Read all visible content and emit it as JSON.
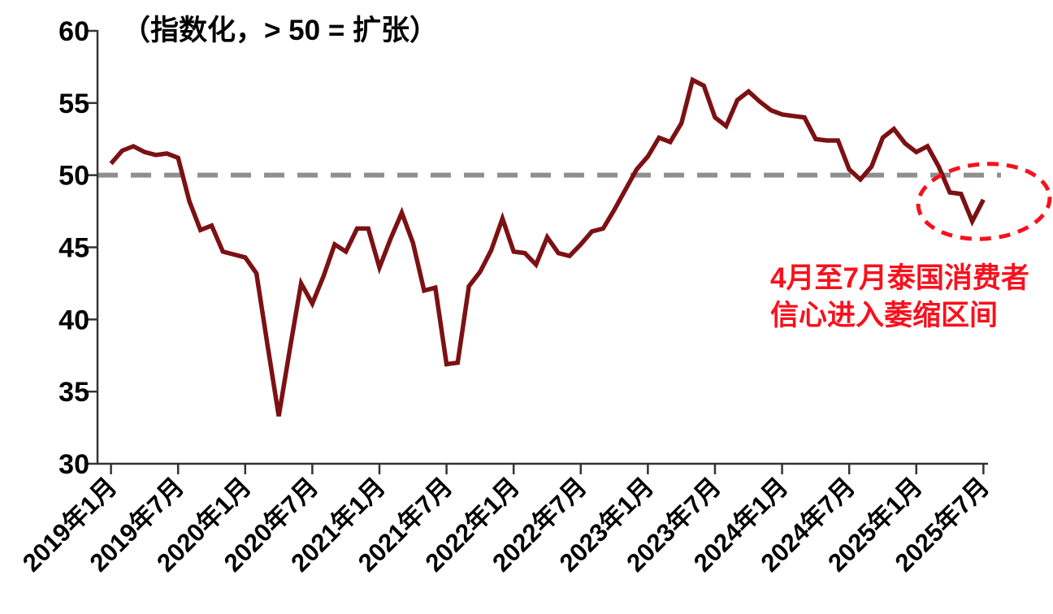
{
  "chart": {
    "subtitle": "（指数化，> 50 = 扩张）",
    "annotation": {
      "line1": "4月至7月泰国消费者",
      "line2": "信心进入萎缩区间"
    }
  },
  "colors": {
    "series_line": "#7c1114",
    "reference_dash": "#8f8f8f",
    "highlight_red": "#f8111d",
    "axis": "#333333",
    "label_text": "#000000",
    "background": "#ffffff"
  },
  "chart_data": {
    "type": "line",
    "title": "（指数化，> 50 = 扩张）",
    "xlabel": "",
    "ylabel": "",
    "frequency": "monthly",
    "x_start": "2019年1月",
    "x_end": "2025年7月",
    "x_tick_labels": [
      "2019年1月",
      "2019年7月",
      "2020年1月",
      "2020年7月",
      "2021年1月",
      "2021年7月",
      "2022年1月",
      "2022年7月",
      "2023年1月",
      "2023年7月",
      "2024年1月",
      "2024年7月",
      "2025年1月",
      "2025年7月"
    ],
    "x_ticks_every_n_months": 6,
    "y_ticks": [
      30,
      35,
      40,
      45,
      50,
      55,
      60
    ],
    "ylim": [
      30,
      60
    ],
    "grid": false,
    "legend": "none",
    "reference_line": {
      "value": 50,
      "style": "dashed",
      "meaning": "> 50 = 扩张"
    },
    "highlight": {
      "shape": "dashed-ellipse",
      "region": "2025年4月-2025年7月",
      "note": "4月至7月泰国消费者信心进入萎缩区间"
    },
    "values": [
      50.8,
      51.7,
      52.0,
      51.6,
      51.4,
      51.5,
      51.2,
      48.2,
      46.2,
      46.5,
      44.7,
      44.5,
      44.3,
      43.2,
      38.2,
      33.3,
      38.0,
      42.5,
      41.1,
      43.0,
      45.2,
      44.7,
      46.3,
      46.3,
      43.6,
      45.6,
      47.4,
      45.3,
      42.0,
      42.2,
      36.9,
      37.0,
      42.3,
      43.3,
      44.8,
      47.0,
      44.7,
      44.6,
      43.8,
      45.7,
      44.6,
      44.4,
      45.2,
      46.1,
      46.3,
      47.6,
      49.0,
      50.4,
      51.3,
      52.6,
      52.3,
      53.6,
      56.6,
      56.2,
      54.0,
      53.4,
      55.2,
      55.8,
      55.1,
      54.5,
      54.2,
      54.1,
      54.0,
      52.5,
      52.4,
      52.4,
      50.4,
      49.7,
      50.6,
      52.6,
      53.2,
      52.2,
      51.6,
      52.0,
      50.6,
      48.8,
      48.7,
      46.8,
      48.3
    ]
  }
}
